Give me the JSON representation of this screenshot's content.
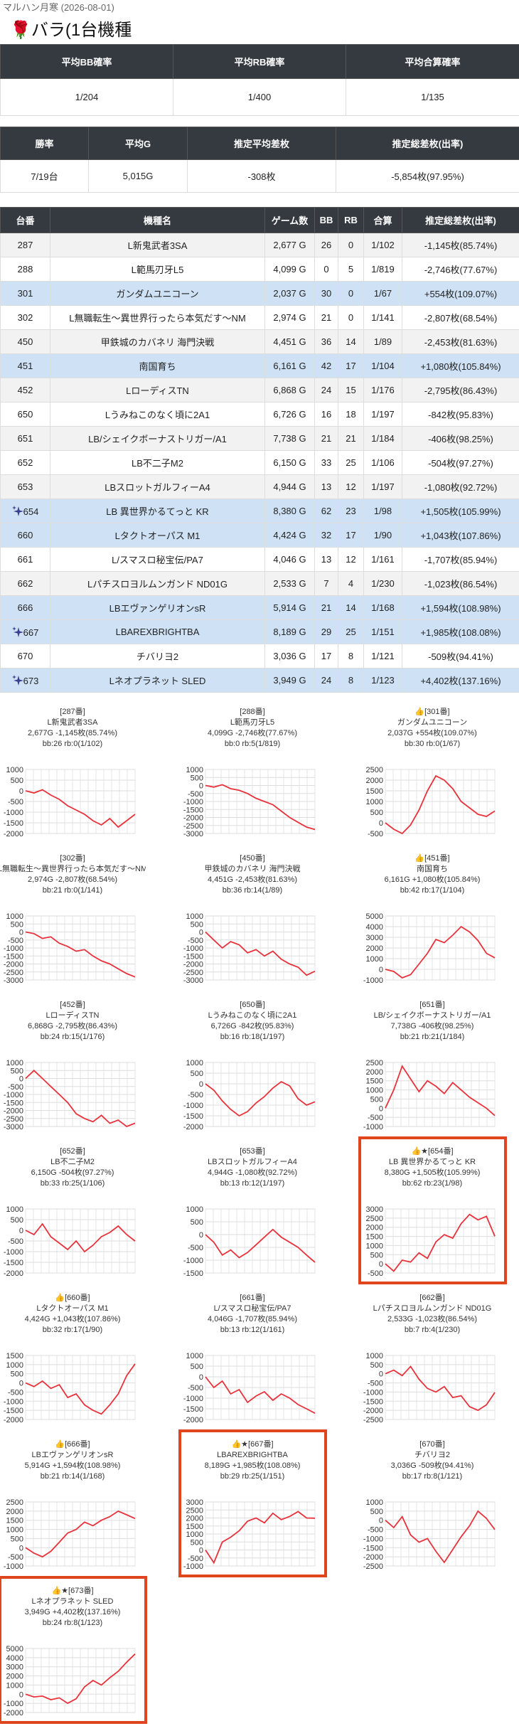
{
  "header": {
    "store": "マルハン月寒 (2026-08-01)",
    "title": "🌹バラ(1台機種"
  },
  "summary1": {
    "headers": [
      "平均BB確率",
      "平均RB確率",
      "平均合算確率"
    ],
    "values": [
      "1/204",
      "1/400",
      "1/135"
    ]
  },
  "summary2": {
    "headers": [
      "勝率",
      "平均G",
      "推定平均差枚",
      "推定総差枚(出率)"
    ],
    "values": [
      "7/19台",
      "5,015G",
      "-308枚",
      "-5,854枚(97.95%)"
    ]
  },
  "table": {
    "headers": [
      "台番",
      "機種名",
      "ゲーム数",
      "BB",
      "RB",
      "合算",
      "推定総差枚(出率)"
    ],
    "rows": [
      {
        "cells": [
          "287",
          "L新鬼武者3SA",
          "2,677 G",
          "26",
          "0",
          "1/102",
          "-1,145枚(85.74%)"
        ]
      },
      {
        "cells": [
          "288",
          "L範馬刃牙L5",
          "4,099 G",
          "0",
          "5",
          "1/819",
          "-2,746枚(77.67%)"
        ]
      },
      {
        "cells": [
          "301",
          "ガンダムユニコーン",
          "2,037 G",
          "30",
          "0",
          "1/67",
          "+554枚(109.07%)"
        ],
        "highlight": true
      },
      {
        "cells": [
          "302",
          "L無職転生～異世界行ったら本気だす～NM",
          "2,974 G",
          "21",
          "0",
          "1/141",
          "-2,807枚(68.54%)"
        ]
      },
      {
        "cells": [
          "450",
          "甲鉄城のカバネリ 海門決戦",
          "4,451 G",
          "36",
          "14",
          "1/89",
          "-2,453枚(81.63%)"
        ]
      },
      {
        "cells": [
          "451",
          "南国育ち",
          "6,161 G",
          "42",
          "17",
          "1/104",
          "+1,080枚(105.84%)"
        ],
        "highlight": true
      },
      {
        "cells": [
          "452",
          "LローディスTN",
          "6,868 G",
          "24",
          "15",
          "1/176",
          "-2,795枚(86.43%)"
        ]
      },
      {
        "cells": [
          "650",
          "Lうみねこのなく頃に2A1",
          "6,726 G",
          "16",
          "18",
          "1/197",
          "-842枚(95.83%)"
        ]
      },
      {
        "cells": [
          "651",
          "LB/シェイクボーナストリガー/A1",
          "7,738 G",
          "21",
          "21",
          "1/184",
          "-406枚(98.25%)"
        ]
      },
      {
        "cells": [
          "652",
          "LB不二子M2",
          "6,150 G",
          "33",
          "25",
          "1/106",
          "-504枚(97.27%)"
        ]
      },
      {
        "cells": [
          "653",
          "LBスロットガルフィーA4",
          "4,944 G",
          "13",
          "12",
          "1/197",
          "-1,080枚(92.72%)"
        ]
      },
      {
        "cells": [
          "654",
          "LB 異世界かるてっと KR",
          "8,380 G",
          "62",
          "23",
          "1/98",
          "+1,505枚(105.99%)"
        ],
        "highlight": true,
        "sparkle": true
      },
      {
        "cells": [
          "660",
          "Lタクトオーパス M1",
          "4,424 G",
          "32",
          "17",
          "1/90",
          "+1,043枚(107.86%)"
        ],
        "highlight": true
      },
      {
        "cells": [
          "661",
          "L/スマスロ秘宝伝/PA7",
          "4,046 G",
          "13",
          "12",
          "1/161",
          "-1,707枚(85.94%)"
        ]
      },
      {
        "cells": [
          "662",
          "Lパチスロヨルムンガンド ND01G",
          "2,533 G",
          "7",
          "4",
          "1/230",
          "-1,023枚(86.54%)"
        ]
      },
      {
        "cells": [
          "666",
          "LBエヴァンゲリオンsR",
          "5,914 G",
          "21",
          "14",
          "1/168",
          "+1,594枚(108.98%)"
        ],
        "highlight": true
      },
      {
        "cells": [
          "667",
          "LBAREXBRIGHTBA",
          "8,189 G",
          "29",
          "25",
          "1/151",
          "+1,985枚(108.08%)"
        ],
        "highlight": true,
        "sparkle": true
      },
      {
        "cells": [
          "670",
          "チバリヨ2",
          "3,036 G",
          "17",
          "8",
          "1/121",
          "-509枚(94.41%)"
        ]
      },
      {
        "cells": [
          "673",
          "Lネオプラネット SLED",
          "3,949 G",
          "24",
          "8",
          "1/123",
          "+4,402枚(137.16%)"
        ],
        "highlight": true,
        "sparkle": true
      }
    ]
  },
  "chart_data": [
    {
      "type": "line",
      "lines": [
        "[287番]",
        "L新鬼武者3SA",
        "2,677G -1,145枚(85.74%)",
        "bb:26 rb:0(1/102)"
      ],
      "color": "#e8323c",
      "ylim": [
        -2000,
        1000
      ],
      "yticks": [
        1000,
        500,
        0,
        -500,
        -1000,
        -1500,
        -2000
      ],
      "values": [
        0,
        -100,
        50,
        -200,
        -400,
        -700,
        -900,
        -1100,
        -1400,
        -1600,
        -1300,
        -1700,
        -1400,
        -1100
      ]
    },
    {
      "type": "line",
      "lines": [
        "[288番]",
        "L範馬刃牙L5",
        "4,099G -2,746枚(77.67%)",
        "bb:0 rb:5(1/819)"
      ],
      "color": "#e8323c",
      "ylim": [
        -3000,
        1000
      ],
      "yticks": [
        1000,
        500,
        0,
        -500,
        -1000,
        -1500,
        -2000,
        -2500,
        -3000
      ],
      "values": [
        0,
        -100,
        50,
        -200,
        -300,
        -500,
        -800,
        -1000,
        -1200,
        -1600,
        -2000,
        -2300,
        -2600,
        -2750
      ]
    },
    {
      "type": "line",
      "lines": [
        "👍[301番]",
        "ガンダムユニコーン",
        "2,037G +554枚(109.07%)",
        "bb:30 rb:0(1/67)"
      ],
      "color": "#e8323c",
      "ylim": [
        -500,
        2500
      ],
      "yticks": [
        2500,
        2000,
        1500,
        1000,
        500,
        0,
        -500
      ],
      "values": [
        0,
        -300,
        -500,
        -100,
        600,
        1500,
        2200,
        2000,
        1600,
        1000,
        700,
        400,
        300,
        554
      ]
    },
    {
      "type": "line",
      "lines": [
        "[302番]",
        "L無職転生～異世界行ったら本気だす～NM",
        "2,974G -2,807枚(68.54%)",
        "bb:21 rb:0(1/141)"
      ],
      "color": "#e8323c",
      "ylim": [
        -3000,
        1000
      ],
      "yticks": [
        1000,
        500,
        0,
        -500,
        -1000,
        -1500,
        -2000,
        -2500,
        -3000
      ],
      "values": [
        0,
        -100,
        -400,
        -300,
        -700,
        -900,
        -1200,
        -1100,
        -1500,
        -1800,
        -2000,
        -2300,
        -2600,
        -2807
      ]
    },
    {
      "type": "line",
      "lines": [
        "[450番]",
        "甲鉄城のカバネリ 海門決戦",
        "4,451G -2,453枚(81.63%)",
        "bb:36 rb:14(1/89)"
      ],
      "color": "#e8323c",
      "ylim": [
        -3000,
        1000
      ],
      "yticks": [
        1000,
        500,
        0,
        -500,
        -1000,
        -1500,
        -2000,
        -2500,
        -3000
      ],
      "values": [
        0,
        -500,
        -1000,
        -600,
        -800,
        -1300,
        -1100,
        -1500,
        -1200,
        -1700,
        -2000,
        -2200,
        -2700,
        -2453
      ]
    },
    {
      "type": "line",
      "lines": [
        "👍[451番]",
        "南国育ち",
        "6,161G +1,080枚(105.84%)",
        "bb:42 rb:17(1/104)"
      ],
      "color": "#e8323c",
      "ylim": [
        -1000,
        5000
      ],
      "yticks": [
        5000,
        4000,
        3000,
        2000,
        1000,
        0,
        -1000
      ],
      "values": [
        0,
        -200,
        -800,
        -500,
        500,
        1500,
        2800,
        2500,
        3200,
        4000,
        3500,
        2700,
        1500,
        1080
      ]
    },
    {
      "type": "line",
      "lines": [
        "[452番]",
        "LローディスTN",
        "6,868G -2,795枚(86.43%)",
        "bb:24 rb:15(1/176)"
      ],
      "color": "#e8323c",
      "ylim": [
        -3000,
        1000
      ],
      "yticks": [
        1000,
        500,
        0,
        -500,
        -1000,
        -1500,
        -2000,
        -2500,
        -3000
      ],
      "values": [
        0,
        500,
        0,
        -500,
        -1000,
        -1500,
        -2200,
        -2500,
        -2700,
        -2300,
        -2800,
        -2600,
        -3000,
        -2795
      ]
    },
    {
      "type": "line",
      "lines": [
        "[650番]",
        "Lうみねこのなく頃に2A1",
        "6,726G -842枚(95.83%)",
        "bb:16 rb:18(1/197)"
      ],
      "color": "#e8323c",
      "ylim": [
        -2000,
        1000
      ],
      "yticks": [
        1000,
        500,
        0,
        -500,
        -1000,
        -1500,
        -2000
      ],
      "values": [
        0,
        -300,
        -800,
        -1200,
        -1500,
        -1300,
        -900,
        -600,
        -200,
        100,
        -100,
        -700,
        -1000,
        -842
      ]
    },
    {
      "type": "line",
      "lines": [
        "[651番]",
        "LB/シェイクボーナストリガー/A1",
        "7,738G -406枚(98.25%)",
        "bb:21 rb:21(1/184)"
      ],
      "color": "#e8323c",
      "ylim": [
        -1000,
        2500
      ],
      "yticks": [
        2500,
        2000,
        1500,
        1000,
        500,
        0,
        -500,
        -1000
      ],
      "values": [
        0,
        1000,
        2300,
        1600,
        900,
        1500,
        1200,
        800,
        1400,
        1000,
        600,
        300,
        0,
        -406
      ]
    },
    {
      "type": "line",
      "lines": [
        "[652番]",
        "LB不二子M2",
        "6,150G -504枚(97.27%)",
        "bb:33 rb:25(1/106)"
      ],
      "color": "#e8323c",
      "ylim": [
        -2000,
        1000
      ],
      "yticks": [
        1000,
        500,
        0,
        -500,
        -1000,
        -1500,
        -2000
      ],
      "values": [
        0,
        -200,
        300,
        -300,
        -600,
        -900,
        -500,
        -1000,
        -700,
        -300,
        -100,
        200,
        -200,
        -504
      ]
    },
    {
      "type": "line",
      "lines": [
        "[653番]",
        "LBスロットガルフィーA4",
        "4,944G -1,080枚(92.72%)",
        "bb:13 rb:12(1/197)"
      ],
      "color": "#e8323c",
      "ylim": [
        -1500,
        1000
      ],
      "yticks": [
        1000,
        500,
        0,
        -500,
        -1000,
        -1500
      ],
      "values": [
        0,
        -300,
        -800,
        -600,
        -900,
        -700,
        -400,
        -100,
        200,
        -100,
        -300,
        -500,
        -800,
        -1080
      ]
    },
    {
      "type": "line",
      "lines": [
        "👍★[654番]",
        "LB 異世界かるてっと KR",
        "8,380G +1,505枚(105.99%)",
        "bb:62 rb:23(1/98)"
      ],
      "color": "#e8323c",
      "highlight": true,
      "ylim": [
        -500,
        3000
      ],
      "yticks": [
        3000,
        2500,
        2000,
        1500,
        1000,
        500,
        0,
        -500
      ],
      "values": [
        0,
        -400,
        200,
        100,
        600,
        300,
        1200,
        1600,
        1400,
        2200,
        2700,
        2400,
        2600,
        1505
      ]
    },
    {
      "type": "line",
      "lines": [
        "👍[660番]",
        "Lタクトオーパス M1",
        "4,424G +1,043枚(107.86%)",
        "bb:32 rb:17(1/90)"
      ],
      "color": "#e8323c",
      "ylim": [
        -2000,
        1500
      ],
      "yticks": [
        1500,
        1000,
        500,
        0,
        -500,
        -1000,
        -1500,
        -2000
      ],
      "values": [
        0,
        -200,
        100,
        -300,
        -100,
        -800,
        -600,
        -1200,
        -1500,
        -1700,
        -1200,
        -600,
        400,
        1043
      ]
    },
    {
      "type": "line",
      "lines": [
        "[661番]",
        "L/スマスロ秘宝伝/PA7",
        "4,046G -1,707枚(85.94%)",
        "bb:13 rb:12(1/161)"
      ],
      "color": "#e8323c",
      "ylim": [
        -2000,
        1000
      ],
      "yticks": [
        1000,
        500,
        0,
        -500,
        -1000,
        -1500,
        -2000
      ],
      "values": [
        0,
        -500,
        -200,
        -800,
        -600,
        -1200,
        -900,
        -700,
        -1100,
        -800,
        -1000,
        -1300,
        -1500,
        -1707
      ]
    },
    {
      "type": "line",
      "lines": [
        "[662番]",
        "Lパチスロヨルムンガンド ND01G",
        "2,533G -1,023枚(86.54%)",
        "bb:7 rb:4(1/230)"
      ],
      "color": "#e8323c",
      "ylim": [
        -2500,
        1000
      ],
      "yticks": [
        1000,
        500,
        0,
        -500,
        -1000,
        -1500,
        -2000,
        -2500
      ],
      "values": [
        0,
        200,
        -100,
        400,
        -300,
        -800,
        -1000,
        -700,
        -1300,
        -1200,
        -1800,
        -2000,
        -1700,
        -1023
      ]
    },
    {
      "type": "line",
      "lines": [
        "👍[666番]",
        "LBエヴァンゲリオンsR",
        "5,914G +1,594枚(108.98%)",
        "bb:21 rb:14(1/168)"
      ],
      "color": "#e8323c",
      "ylim": [
        -1000,
        2500
      ],
      "yticks": [
        2500,
        2000,
        1500,
        1000,
        500,
        0,
        -500,
        -1000
      ],
      "values": [
        0,
        -300,
        -500,
        -200,
        300,
        800,
        1000,
        1400,
        1200,
        1500,
        1700,
        2000,
        1800,
        1594
      ]
    },
    {
      "type": "line",
      "lines": [
        "👍★[667番]",
        "LBAREXBRIGHTBA",
        "8,189G +1,985枚(108.08%)",
        "bb:29 rb:25(1/151)"
      ],
      "color": "#e8323c",
      "highlight": true,
      "ylim": [
        -1000,
        3000
      ],
      "yticks": [
        3000,
        2500,
        2000,
        1500,
        1000,
        500,
        0,
        -500,
        -1000
      ],
      "values": [
        0,
        -800,
        500,
        800,
        1200,
        1800,
        2000,
        1700,
        2300,
        1900,
        2100,
        2400,
        2000,
        1985
      ]
    },
    {
      "type": "line",
      "lines": [
        "[670番]",
        "チバリヨ2",
        "3,036G -509枚(94.41%)",
        "bb:17 rb:8(1/121)"
      ],
      "color": "#e8323c",
      "ylim": [
        -2500,
        1000
      ],
      "yticks": [
        1000,
        500,
        0,
        -500,
        -1000,
        -1500,
        -2000,
        -2500
      ],
      "values": [
        0,
        -400,
        200,
        -800,
        -1200,
        -1000,
        -1700,
        -2300,
        -1600,
        -900,
        -300,
        500,
        100,
        -509
      ]
    },
    {
      "type": "line",
      "lines": [
        "👍★[673番]",
        "Lネオプラネット SLED",
        "3,949G +4,402枚(137.16%)",
        "bb:24 rb:8(1/123)"
      ],
      "color": "#e8323c",
      "highlight": true,
      "ylim": [
        -2000,
        5000
      ],
      "yticks": [
        5000,
        4000,
        3000,
        2000,
        1000,
        0,
        -1000,
        -2000
      ],
      "values": [
        0,
        -300,
        -200,
        -600,
        -400,
        -1000,
        -500,
        800,
        1500,
        1000,
        1800,
        2500,
        3500,
        4402
      ]
    }
  ]
}
